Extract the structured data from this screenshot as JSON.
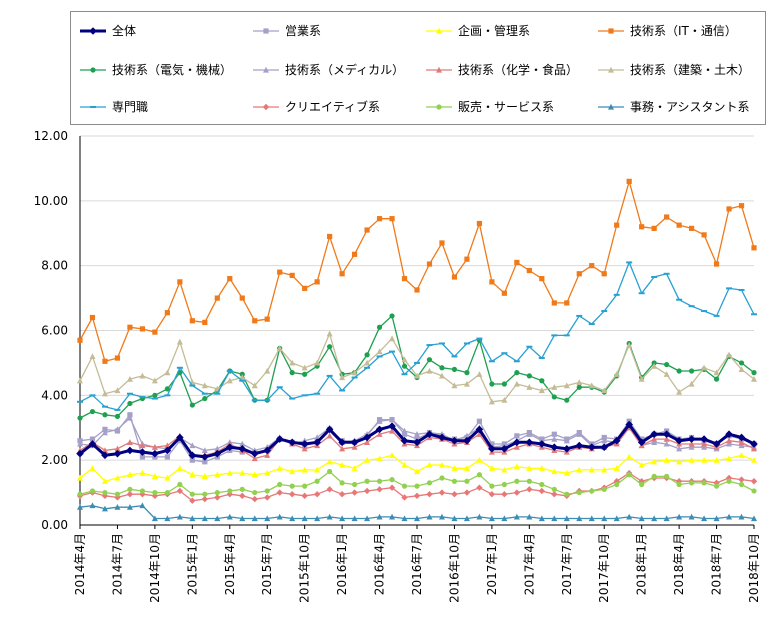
{
  "chart_data": {
    "type": "line",
    "title": "",
    "xlabel": "",
    "ylabel": "",
    "ylim": [
      0,
      12
    ],
    "yticks": [
      "0.00",
      "2.00",
      "4.00",
      "6.00",
      "8.00",
      "10.00",
      "12.00"
    ],
    "grid": true,
    "legend_position": "top",
    "x": [
      "2014年4月",
      "2014年5月",
      "2014年6月",
      "2014年7月",
      "2014年8月",
      "2014年9月",
      "2014年10月",
      "2014年11月",
      "2014年12月",
      "2015年1月",
      "2015年2月",
      "2015年3月",
      "2015年4月",
      "2015年5月",
      "2015年6月",
      "2015年7月",
      "2015年8月",
      "2015年9月",
      "2015年10月",
      "2015年11月",
      "2015年12月",
      "2016年1月",
      "2016年2月",
      "2016年3月",
      "2016年4月",
      "2016年5月",
      "2016年6月",
      "2016年7月",
      "2016年8月",
      "2016年9月",
      "2016年10月",
      "2016年11月",
      "2016年12月",
      "2017年1月",
      "2017年2月",
      "2017年3月",
      "2017年4月",
      "2017年5月",
      "2017年6月",
      "2017年7月",
      "2017年8月",
      "2017年9月",
      "2017年10月",
      "2017年11月",
      "2017年12月",
      "2018年1月",
      "2018年2月",
      "2018年3月",
      "2018年4月",
      "2018年5月",
      "2018年6月",
      "2018年7月",
      "2018年8月",
      "2018年9月",
      "2018年10月"
    ],
    "x_tick_labels": [
      "2014年4月",
      "2014年7月",
      "2014年10月",
      "2015年1月",
      "2015年4月",
      "2015年7月",
      "2015年10月",
      "2016年1月",
      "2016年4月",
      "2016年7月",
      "2016年10月",
      "2017年1月",
      "2017年4月",
      "2017年7月",
      "2017年10月",
      "2018年1月",
      "2018年4月",
      "2018年7月",
      "2018年10月"
    ],
    "series": [
      {
        "name": "全体",
        "color": "#000080",
        "marker": "diamond",
        "bold": true,
        "values": [
          2.2,
          2.5,
          2.15,
          2.2,
          2.3,
          2.25,
          2.2,
          2.3,
          2.7,
          2.15,
          2.1,
          2.2,
          2.4,
          2.35,
          2.2,
          2.3,
          2.65,
          2.55,
          2.5,
          2.55,
          2.95,
          2.55,
          2.55,
          2.7,
          2.95,
          3.05,
          2.6,
          2.55,
          2.8,
          2.7,
          2.6,
          2.6,
          2.95,
          2.35,
          2.35,
          2.55,
          2.55,
          2.5,
          2.4,
          2.35,
          2.45,
          2.4,
          2.4,
          2.6,
          3.1,
          2.55,
          2.8,
          2.8,
          2.6,
          2.65,
          2.65,
          2.5,
          2.8,
          2.7,
          2.5
        ]
      },
      {
        "name": "営業系",
        "color": "#a5a0c8",
        "marker": "square",
        "values": [
          2.6,
          2.65,
          2.95,
          2.9,
          3.4,
          2.1,
          2.1,
          2.1,
          2.6,
          2.0,
          1.95,
          2.1,
          2.3,
          2.25,
          2.25,
          2.3,
          2.65,
          2.55,
          2.45,
          2.55,
          2.95,
          2.6,
          2.55,
          2.75,
          3.25,
          3.25,
          2.8,
          2.65,
          2.85,
          2.75,
          2.65,
          2.7,
          3.2,
          2.5,
          2.5,
          2.75,
          2.85,
          2.65,
          2.8,
          2.65,
          2.85,
          2.5,
          2.7,
          2.65,
          3.2,
          2.65,
          2.8,
          2.9,
          2.65,
          2.7,
          2.6,
          2.5,
          2.75,
          2.65,
          2.5
        ]
      },
      {
        "name": "企画・管理系",
        "color": "#ffff00",
        "marker": "triangle",
        "values": [
          1.45,
          1.75,
          1.35,
          1.45,
          1.55,
          1.6,
          1.5,
          1.45,
          1.75,
          1.55,
          1.5,
          1.55,
          1.6,
          1.6,
          1.55,
          1.6,
          1.75,
          1.65,
          1.7,
          1.7,
          1.95,
          1.85,
          1.75,
          2.0,
          2.05,
          2.15,
          1.85,
          1.65,
          1.85,
          1.85,
          1.75,
          1.75,
          2.0,
          1.75,
          1.7,
          1.8,
          1.75,
          1.75,
          1.65,
          1.6,
          1.7,
          1.7,
          1.7,
          1.75,
          2.1,
          1.85,
          1.95,
          2.0,
          1.95,
          2.0,
          2.0,
          2.0,
          2.05,
          2.15,
          2.0
        ]
      },
      {
        "name": "技術系（IT・通信）",
        "color": "#f07a1a",
        "marker": "square",
        "values": [
          5.7,
          6.4,
          5.05,
          5.15,
          6.1,
          6.05,
          5.95,
          6.55,
          7.5,
          6.3,
          6.25,
          7.0,
          7.6,
          7.0,
          6.3,
          6.35,
          7.8,
          7.7,
          7.3,
          7.5,
          8.9,
          7.75,
          8.35,
          9.1,
          9.45,
          9.45,
          7.6,
          7.25,
          8.05,
          8.7,
          7.65,
          8.2,
          9.3,
          7.5,
          7.15,
          8.1,
          7.85,
          7.6,
          6.85,
          6.85,
          7.75,
          8.0,
          7.75,
          9.25,
          10.6,
          9.2,
          9.15,
          9.5,
          9.25,
          9.15,
          8.95,
          8.05,
          9.75,
          9.85,
          8.55
        ]
      },
      {
        "name": "技術系（電気・機械）",
        "color": "#1ea050",
        "marker": "circle",
        "values": [
          3.3,
          3.5,
          3.4,
          3.35,
          3.75,
          3.9,
          4.0,
          4.2,
          4.7,
          3.7,
          3.9,
          4.15,
          4.75,
          4.65,
          3.85,
          3.85,
          5.45,
          4.7,
          4.65,
          4.9,
          5.5,
          4.65,
          4.7,
          5.25,
          6.1,
          6.45,
          4.9,
          4.55,
          5.1,
          4.85,
          4.8,
          4.7,
          5.7,
          4.35,
          4.35,
          4.7,
          4.6,
          4.45,
          3.95,
          3.85,
          4.25,
          4.25,
          4.1,
          4.6,
          5.6,
          4.55,
          5.0,
          4.95,
          4.75,
          4.75,
          4.8,
          4.5,
          5.2,
          5.0,
          4.7
        ]
      },
      {
        "name": "技術系（メディカル）",
        "color": "#a5a0c8",
        "marker": "triangle",
        "values": [
          2.5,
          2.45,
          2.85,
          2.95,
          3.3,
          2.5,
          2.4,
          2.35,
          2.7,
          2.45,
          2.3,
          2.35,
          2.55,
          2.5,
          2.3,
          2.4,
          2.7,
          2.5,
          2.6,
          2.7,
          3.0,
          2.55,
          2.6,
          2.8,
          3.2,
          3.25,
          2.9,
          2.8,
          2.85,
          2.8,
          2.6,
          2.75,
          3.0,
          2.4,
          2.45,
          2.6,
          2.8,
          2.6,
          2.65,
          2.6,
          2.8,
          2.45,
          2.6,
          2.55,
          3.0,
          2.45,
          2.55,
          2.5,
          2.35,
          2.4,
          2.4,
          2.35,
          2.5,
          2.45,
          2.4
        ]
      },
      {
        "name": "技術系（化学・食品）",
        "color": "#e07a7a",
        "marker": "triangle",
        "values": [
          2.3,
          2.55,
          2.3,
          2.35,
          2.55,
          2.45,
          2.4,
          2.45,
          2.75,
          2.15,
          2.15,
          2.25,
          2.5,
          2.3,
          2.05,
          2.15,
          2.65,
          2.5,
          2.35,
          2.45,
          2.75,
          2.35,
          2.4,
          2.55,
          2.8,
          2.9,
          2.5,
          2.45,
          2.7,
          2.65,
          2.5,
          2.55,
          2.8,
          2.25,
          2.25,
          2.4,
          2.5,
          2.4,
          2.3,
          2.25,
          2.4,
          2.35,
          2.4,
          2.5,
          3.0,
          2.45,
          2.65,
          2.65,
          2.5,
          2.5,
          2.5,
          2.4,
          2.6,
          2.55,
          2.35
        ]
      },
      {
        "name": "技術系（建築・土木）",
        "color": "#c4bc96",
        "marker": "triangle",
        "values": [
          4.45,
          5.2,
          4.05,
          4.15,
          4.5,
          4.6,
          4.45,
          4.7,
          5.65,
          4.4,
          4.3,
          4.2,
          4.45,
          4.55,
          4.3,
          4.75,
          5.45,
          5.0,
          4.85,
          5.0,
          5.9,
          4.55,
          4.7,
          5.0,
          5.35,
          5.75,
          5.1,
          4.6,
          4.75,
          4.6,
          4.3,
          4.35,
          4.65,
          3.8,
          3.85,
          4.35,
          4.25,
          4.15,
          4.25,
          4.3,
          4.4,
          4.3,
          4.15,
          4.65,
          5.55,
          4.5,
          4.9,
          4.65,
          4.1,
          4.35,
          4.85,
          4.7,
          5.25,
          4.8,
          4.5
        ]
      },
      {
        "name": "専門職",
        "color": "#28a0d2",
        "marker": "dash",
        "values": [
          3.8,
          4.0,
          3.65,
          3.55,
          4.05,
          3.95,
          3.9,
          4.0,
          4.85,
          4.3,
          4.05,
          4.05,
          4.75,
          4.45,
          3.85,
          3.85,
          4.25,
          3.9,
          4.0,
          4.05,
          4.6,
          4.15,
          4.55,
          4.85,
          5.2,
          5.35,
          4.65,
          5.0,
          5.55,
          5.6,
          5.2,
          5.6,
          5.75,
          5.05,
          5.3,
          5.05,
          5.5,
          5.15,
          5.85,
          5.85,
          6.45,
          6.2,
          6.6,
          7.1,
          8.1,
          7.15,
          7.65,
          7.75,
          6.95,
          6.75,
          6.6,
          6.45,
          7.3,
          7.25,
          6.5
        ]
      },
      {
        "name": "クリエイティブ系",
        "color": "#e87878",
        "marker": "diamond",
        "values": [
          0.9,
          1.0,
          0.9,
          0.85,
          0.95,
          0.95,
          0.9,
          0.95,
          1.05,
          0.75,
          0.8,
          0.85,
          0.95,
          0.9,
          0.8,
          0.85,
          1.0,
          0.95,
          0.9,
          0.95,
          1.1,
          0.95,
          1.0,
          1.05,
          1.1,
          1.15,
          0.85,
          0.9,
          0.95,
          1.0,
          0.95,
          1.0,
          1.15,
          0.95,
          0.95,
          1.0,
          1.1,
          1.05,
          0.95,
          0.9,
          1.05,
          1.05,
          1.15,
          1.35,
          1.6,
          1.35,
          1.45,
          1.45,
          1.35,
          1.35,
          1.35,
          1.3,
          1.45,
          1.4,
          1.35
        ]
      },
      {
        "name": "販売・サービス系",
        "color": "#92d050",
        "marker": "circle",
        "values": [
          0.95,
          1.05,
          1.0,
          0.95,
          1.1,
          1.05,
          1.0,
          1.0,
          1.25,
          0.95,
          0.95,
          1.0,
          1.05,
          1.1,
          1.0,
          1.05,
          1.25,
          1.2,
          1.2,
          1.35,
          1.65,
          1.3,
          1.25,
          1.35,
          1.35,
          1.4,
          1.2,
          1.2,
          1.3,
          1.45,
          1.35,
          1.35,
          1.55,
          1.2,
          1.25,
          1.35,
          1.35,
          1.25,
          1.1,
          0.95,
          1.0,
          1.05,
          1.1,
          1.25,
          1.55,
          1.25,
          1.5,
          1.5,
          1.25,
          1.3,
          1.3,
          1.2,
          1.35,
          1.25,
          1.05
        ]
      },
      {
        "name": "事務・アシスタント系",
        "color": "#3c8cb4",
        "marker": "triangle",
        "values": [
          0.55,
          0.6,
          0.5,
          0.55,
          0.55,
          0.6,
          0.2,
          0.2,
          0.25,
          0.2,
          0.2,
          0.2,
          0.25,
          0.2,
          0.2,
          0.2,
          0.25,
          0.2,
          0.2,
          0.2,
          0.25,
          0.2,
          0.2,
          0.2,
          0.25,
          0.25,
          0.2,
          0.2,
          0.25,
          0.25,
          0.2,
          0.2,
          0.25,
          0.2,
          0.2,
          0.25,
          0.25,
          0.2,
          0.2,
          0.2,
          0.2,
          0.2,
          0.2,
          0.2,
          0.25,
          0.2,
          0.2,
          0.2,
          0.25,
          0.25,
          0.2,
          0.2,
          0.25,
          0.25,
          0.2
        ]
      }
    ]
  }
}
